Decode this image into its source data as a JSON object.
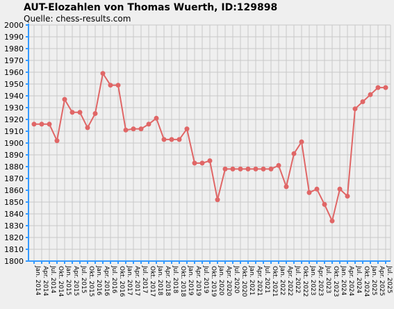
{
  "title": "AUT-Elozahlen von Thomas Wuerth, ID:129898",
  "subtitle": "Quelle: chess-results.com",
  "colors": {
    "background": "#efefef",
    "grid": "#c8c8c8",
    "axis": "#3399ff",
    "series": "#e06666"
  },
  "chart_data": {
    "type": "line",
    "title": "AUT-Elozahlen von Thomas Wuerth, ID:129898",
    "subtitle": "Quelle: chess-results.com",
    "xlabel": "",
    "ylabel": "",
    "ylim": [
      1800,
      2000
    ],
    "y_ticks": [
      1800,
      1810,
      1820,
      1830,
      1840,
      1850,
      1860,
      1870,
      1880,
      1890,
      1900,
      1910,
      1920,
      1930,
      1940,
      1950,
      1960,
      1970,
      1980,
      1990,
      2000
    ],
    "grid": true,
    "legend": "none",
    "categories": [
      "Jan. 2014",
      "Apr. 2014",
      "Jul. 2014",
      "Okt. 2014",
      "Jan. 2015",
      "Apr. 2015",
      "Jul. 2015",
      "Okt. 2015",
      "Jan. 2016",
      "Apr. 2016",
      "Jul. 2016",
      "Okt. 2016",
      "Jan. 2017",
      "Apr. 2017",
      "Jul. 2017",
      "Okt. 2017",
      "Jan. 2018",
      "Apr. 2018",
      "Jul. 2018",
      "Okt. 2018",
      "Jan. 2019",
      "Apr. 2019",
      "Jul. 2019",
      "Okt. 2019",
      "Jan. 2020",
      "Apr. 2020",
      "Jul. 2020",
      "Okt. 2020",
      "Jan. 2021",
      "Apr. 2021",
      "Jul. 2021",
      "Okt. 2021",
      "Jan. 2022",
      "Apr. 2022",
      "Jul. 2022",
      "Okt. 2022",
      "Jan. 2023",
      "Apr. 2023",
      "Jul. 2023",
      "Okt. 2023",
      "Jan. 2024",
      "Apr. 2024",
      "Jul. 2024",
      "Okt. 2024",
      "Jan. 2025",
      "Apr. 2025",
      "Jul. 2025"
    ],
    "series": [
      {
        "name": "",
        "values": [
          1916,
          1916,
          1916,
          1902,
          1937,
          1926,
          1926,
          1913,
          1925,
          1959,
          1949,
          1949,
          1911,
          1912,
          1912,
          1916,
          1921,
          1903,
          1903,
          1903,
          1912,
          1883,
          1883,
          1885,
          1852,
          1878,
          1878,
          1878,
          1878,
          1878,
          1878,
          1878,
          1881,
          1863,
          1891,
          1901,
          1858,
          1861,
          1848,
          1834,
          1861,
          1855,
          1929,
          1935,
          1941,
          1947,
          1947
        ]
      }
    ]
  }
}
